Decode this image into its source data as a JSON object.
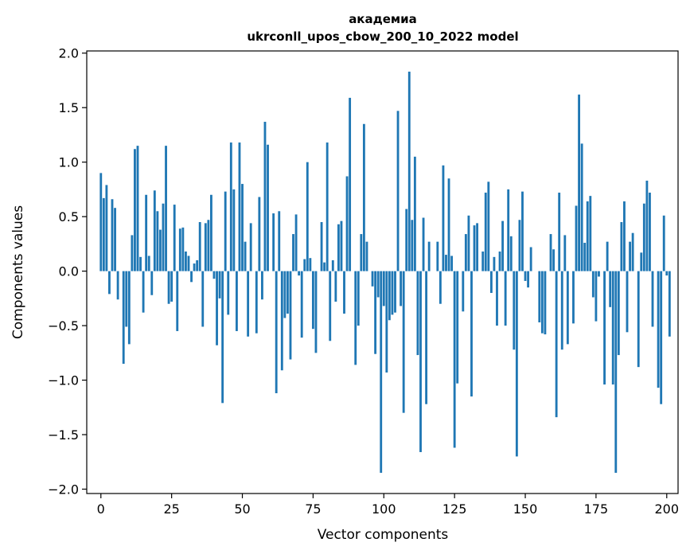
{
  "chart_data": {
    "type": "bar",
    "title_line1": "академиа",
    "title_line2": "ukrconll_upos_cbow_200_10_2022 model",
    "xlabel": "Vector components",
    "ylabel": "Components values",
    "xlim": [
      -5,
      204
    ],
    "ylim": [
      -2.04,
      2.02
    ],
    "bar_color": "#1f77b4",
    "x_ticks": [
      0,
      25,
      50,
      75,
      100,
      125,
      150,
      175,
      200
    ],
    "x_tick_labels": [
      "0",
      "25",
      "50",
      "75",
      "100",
      "125",
      "150",
      "175",
      "200"
    ],
    "y_ticks": [
      2.0,
      1.5,
      1.0,
      0.5,
      0.0,
      -0.5,
      -1.0,
      -1.5,
      -2.0
    ],
    "y_tick_labels": [
      "2.0",
      "1.5",
      "1.0",
      "0.5",
      "0.0",
      "−0.5",
      "−1.0",
      "−1.5",
      "−2.0"
    ],
    "values": [
      0.9,
      0.67,
      0.79,
      -0.21,
      0.66,
      0.58,
      -0.26,
      0.0,
      -0.85,
      -0.51,
      -0.67,
      0.33,
      1.12,
      1.15,
      0.13,
      -0.38,
      0.7,
      0.14,
      -0.22,
      0.74,
      0.55,
      0.38,
      0.62,
      1.15,
      -0.3,
      -0.28,
      0.61,
      -0.55,
      0.39,
      0.4,
      0.18,
      0.14,
      -0.1,
      0.07,
      0.1,
      0.45,
      -0.51,
      0.44,
      0.47,
      0.7,
      -0.07,
      -0.68,
      -0.25,
      -1.21,
      0.73,
      -0.4,
      1.18,
      0.75,
      -0.55,
      1.18,
      0.8,
      0.27,
      -0.6,
      0.44,
      0.0,
      -0.57,
      0.68,
      -0.26,
      1.37,
      1.16,
      0.0,
      0.53,
      -1.12,
      0.55,
      -0.91,
      -0.43,
      -0.39,
      -0.81,
      0.34,
      0.52,
      -0.04,
      -0.61,
      0.11,
      1.0,
      0.12,
      -0.53,
      -0.75,
      0.0,
      0.45,
      0.08,
      1.18,
      -0.64,
      0.1,
      -0.28,
      0.43,
      0.46,
      -0.39,
      0.87,
      1.59,
      0.0,
      -0.86,
      -0.5,
      0.34,
      1.35,
      0.27,
      0.0,
      -0.14,
      -0.76,
      -0.24,
      -1.85,
      -0.32,
      -0.93,
      -0.45,
      -0.4,
      -0.38,
      1.47,
      -0.32,
      -1.3,
      0.57,
      1.83,
      0.47,
      1.05,
      -0.77,
      -1.66,
      0.49,
      -1.22,
      0.27,
      0.0,
      0.0,
      0.27,
      -0.3,
      0.97,
      0.15,
      0.85,
      0.14,
      -1.62,
      -1.03,
      0.0,
      -0.37,
      0.34,
      0.51,
      -1.15,
      0.42,
      0.44,
      0.0,
      0.18,
      0.72,
      0.82,
      -0.2,
      0.13,
      -0.5,
      0.18,
      0.46,
      -0.5,
      0.75,
      0.32,
      -0.72,
      -1.7,
      0.47,
      0.73,
      -0.09,
      -0.15,
      0.22,
      0.0,
      0.0,
      -0.47,
      -0.57,
      -0.58,
      0.0,
      0.34,
      0.2,
      -1.34,
      0.72,
      -0.72,
      0.33,
      -0.67,
      0.0,
      -0.48,
      0.6,
      1.62,
      1.17,
      0.26,
      0.64,
      0.69,
      -0.24,
      -0.46,
      -0.05,
      0.0,
      -1.04,
      0.27,
      -0.33,
      -1.04,
      -1.85,
      -0.77,
      0.45,
      0.64,
      -0.56,
      0.27,
      0.35,
      0.0,
      -0.88,
      0.17,
      0.62,
      0.83,
      0.72,
      -0.51,
      0.0,
      -1.07,
      -1.22,
      0.51,
      -0.04,
      -0.6
    ]
  }
}
